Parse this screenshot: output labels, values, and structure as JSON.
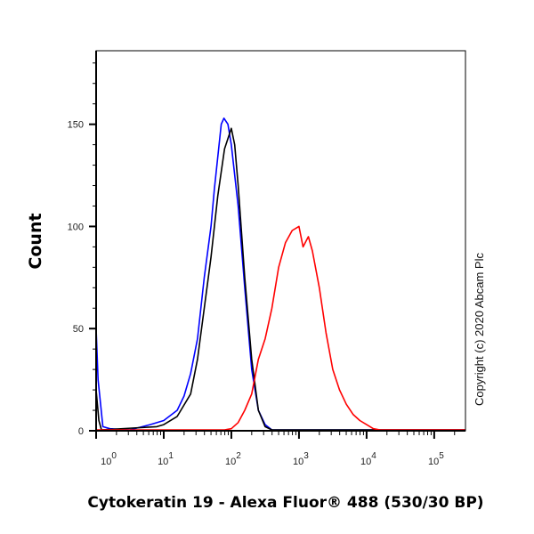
{
  "chart_data": {
    "type": "line",
    "title": "",
    "xlabel": "Cytokeratin 19 - Alexa Fluor® 488 (530/30 BP)",
    "ylabel": "Count",
    "x_scale": "log",
    "xlim": [
      1,
      290000
    ],
    "ylim": [
      0,
      186
    ],
    "x_ticks": [
      {
        "value": 1,
        "base": "10",
        "exp": "0"
      },
      {
        "value": 10,
        "base": "10",
        "exp": "1"
      },
      {
        "value": 100,
        "base": "10",
        "exp": "2"
      },
      {
        "value": 1000,
        "base": "10",
        "exp": "3"
      },
      {
        "value": 10000,
        "base": "10",
        "exp": "4"
      },
      {
        "value": 100000,
        "base": "10",
        "exp": "5"
      }
    ],
    "y_ticks": [
      {
        "value": 0,
        "label": "0"
      },
      {
        "value": 50,
        "label": "50"
      },
      {
        "value": 100,
        "label": "100"
      },
      {
        "value": 150,
        "label": "150"
      }
    ],
    "grid": false,
    "legend": "none",
    "annotation": "Copyright (c) 2020 Abcam Plc",
    "series": [
      {
        "color": "#0000ff",
        "x": [
          1,
          1.07,
          1.26,
          1.6,
          3.16,
          6.3,
          10,
          15.8,
          20,
          25,
          31.6,
          39.8,
          50,
          56,
          70.8,
          77.6,
          89,
          100,
          126,
          158,
          200,
          251,
          316,
          398,
          290000
        ],
        "y": [
          50,
          25,
          2,
          1,
          0,
          3,
          5,
          10,
          17,
          28,
          45,
          75,
          100,
          118,
          150,
          153,
          150,
          140,
          110,
          70,
          30,
          10,
          3,
          0,
          0
        ]
      },
      {
        "color": "#000000",
        "x": [
          1,
          1.1,
          1.2,
          7.9,
          10,
          15.8,
          25,
          31.6,
          39.8,
          50,
          63,
          79.4,
          100,
          112,
          126,
          158,
          200,
          251,
          316,
          398,
          290000
        ],
        "y": [
          20,
          5,
          0,
          2,
          3,
          7,
          18,
          35,
          60,
          85,
          115,
          138,
          148,
          140,
          120,
          75,
          35,
          10,
          2,
          0,
          0
        ]
      },
      {
        "color": "#ff0000",
        "x": [
          1,
          79.4,
          100,
          126,
          158,
          200,
          251,
          316,
          398,
          501,
          631,
          794,
          1000,
          1150,
          1380,
          1580,
          2000,
          2510,
          3160,
          3980,
          5010,
          6310,
          7940,
          10000,
          12600,
          15800,
          290000
        ],
        "y": [
          0,
          0,
          1,
          4,
          10,
          18,
          35,
          45,
          60,
          80,
          92,
          98,
          100,
          90,
          95,
          88,
          70,
          48,
          30,
          20,
          13,
          8,
          5,
          3,
          1,
          0,
          0
        ]
      }
    ]
  }
}
